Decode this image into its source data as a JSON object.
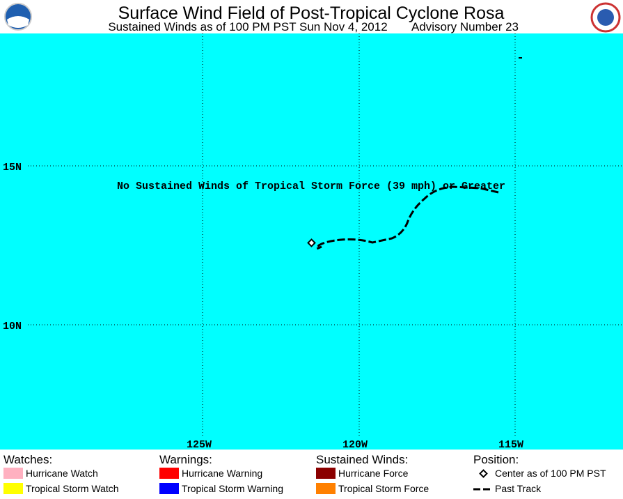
{
  "header": {
    "title": "Surface Wind Field of Post-Tropical Cyclone Rosa",
    "subtitle": "Sustained Winds as of 100 PM PST Sun Nov 4, 2012",
    "advisory": "Advisory Number 23"
  },
  "map": {
    "latitude_labels": [
      "15N",
      "10N"
    ],
    "longitude_labels": [
      "125W",
      "120W",
      "115W"
    ],
    "note": "No Sustained Winds of Tropical Storm Force (39 mph) or Greater"
  },
  "legend": {
    "watches": {
      "title": "Watches:",
      "items": [
        "Hurricane Watch",
        "Tropical Storm Watch"
      ]
    },
    "warnings": {
      "title": "Warnings:",
      "items": [
        "Hurricane Warning",
        "Tropical Storm Warning"
      ]
    },
    "winds": {
      "title": "Sustained Winds:",
      "items": [
        "Hurricane Force",
        "Tropical Storm Force"
      ]
    },
    "position": {
      "title": "Position:",
      "items": [
        "Center as of 100 PM PST",
        "Past Track"
      ]
    }
  }
}
